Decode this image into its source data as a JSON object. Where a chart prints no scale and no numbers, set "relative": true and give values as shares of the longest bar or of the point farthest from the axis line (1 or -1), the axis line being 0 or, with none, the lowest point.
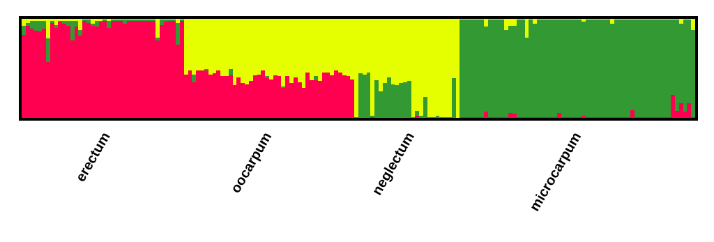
{
  "chart_data": {
    "type": "bar",
    "stacked": true,
    "relative": true,
    "categories": [
      null,
      null,
      null,
      null,
      null,
      null,
      null,
      null,
      null,
      null,
      null,
      null,
      null,
      null,
      null,
      null,
      null,
      "erectum",
      null,
      null,
      null,
      null,
      null,
      null,
      null,
      null,
      null,
      null,
      null,
      null,
      null,
      null,
      null,
      null,
      null,
      null,
      null,
      null,
      null,
      null,
      null,
      null,
      null,
      null,
      null,
      null,
      null,
      null,
      null,
      null,
      null,
      null,
      null,
      null,
      null,
      null,
      "oocarpum",
      null,
      null,
      null,
      null,
      null,
      null,
      null,
      null,
      null,
      null,
      null,
      null,
      null,
      null,
      null,
      null,
      null,
      null,
      null,
      null,
      null,
      null,
      null,
      null,
      null,
      null,
      null,
      null,
      null,
      null,
      null,
      null,
      null,
      null,
      "neglectum",
      null,
      null,
      null,
      null,
      null,
      null,
      null,
      null,
      null,
      null,
      null,
      null,
      null,
      null,
      null,
      null,
      null,
      null,
      null,
      null,
      null,
      null,
      null,
      null,
      null,
      null,
      null,
      null,
      null,
      null,
      null,
      null,
      null,
      null,
      null,
      null,
      null,
      null,
      null,
      "microcarpum",
      null,
      null,
      null,
      null,
      null,
      null,
      null,
      null,
      null,
      null,
      null,
      null,
      null,
      null,
      null,
      null,
      null,
      null,
      null,
      null,
      null,
      null,
      null,
      null,
      null,
      null,
      null,
      null,
      null,
      null,
      null,
      null,
      null,
      null
    ],
    "series": [
      {
        "color": "#ff0050",
        "values": [
          0.84,
          0.93,
          0.9,
          0.88,
          0.87,
          0.9,
          0.56,
          0.96,
          0.91,
          0.97,
          0.95,
          0.93,
          0.78,
          0.92,
          0.83,
          0.98,
          0.96,
          0.93,
          0.92,
          0.97,
          0.98,
          0.91,
          0.98,
          0.98,
          0.98,
          0.95,
          0.98,
          0.98,
          0.98,
          0.98,
          0.98,
          0.98,
          0.98,
          0.78,
          0.94,
          0.97,
          0.98,
          0.98,
          0.74,
          0.98,
          0.44,
          0.48,
          0.36,
          0.48,
          0.48,
          0.48,
          0.44,
          0.45,
          0.48,
          0.42,
          0.42,
          0.43,
          0.33,
          0.41,
          0.35,
          0.34,
          0.37,
          0.43,
          0.44,
          0.48,
          0.4,
          0.39,
          0.43,
          0.42,
          0.3,
          0.42,
          0.35,
          0.41,
          0.36,
          0.3,
          0.46,
          0.38,
          0.38,
          0.37,
          0.46,
          0.46,
          0.43,
          0.48,
          0.46,
          0.43,
          0.42,
          0.39,
          0,
          0,
          0,
          0,
          0.01,
          0,
          0,
          0,
          0,
          0,
          0,
          0,
          0,
          0,
          0,
          0.02,
          0,
          0,
          0,
          0,
          0,
          0,
          0,
          0,
          0,
          0,
          0.01,
          0.01,
          0.01,
          0.01,
          0.01,
          0.01,
          0.06,
          0.01,
          0.01,
          0.01,
          0.01,
          0.01,
          0.05,
          0.04,
          0.01,
          0.01,
          0.01,
          0.01,
          0.01,
          0.01,
          0.01,
          0.01,
          0.01,
          0.01,
          0.05,
          0.01,
          0.01,
          0.01,
          0.01,
          0.01,
          0.02,
          0.01,
          0.01,
          0.01,
          0.01,
          0.01,
          0.01,
          0.01,
          0.01,
          0.01,
          0.01,
          0.01,
          0.08,
          0.01,
          0.01,
          0.01,
          0.01,
          0.01,
          0.01,
          0.01,
          0.01,
          0.01,
          0.23,
          0.07,
          0.15,
          0.06,
          0.15,
          0.01
        ]
      },
      {
        "color": "#339933",
        "values": [
          0.09,
          0.03,
          0.08,
          0.1,
          0.11,
          0.08,
          0.24,
          0.02,
          0.03,
          0.01,
          0.03,
          0.05,
          0.2,
          0.06,
          0.06,
          0.01,
          0.03,
          0.02,
          0.06,
          0.01,
          0.01,
          0.07,
          0.01,
          0.01,
          0.01,
          0.04,
          0.01,
          0.01,
          0.01,
          0.01,
          0.01,
          0.01,
          0.01,
          0.03,
          0.05,
          0.02,
          0.01,
          0.01,
          0.22,
          0.01,
          0,
          0,
          0.08,
          0,
          0,
          0.01,
          0,
          0,
          0,
          0,
          0,
          0.06,
          0,
          0,
          0,
          0,
          0,
          0,
          0,
          0,
          0.02,
          0,
          0,
          0,
          0.02,
          0,
          0,
          0,
          0,
          0,
          0,
          0,
          0.04,
          0,
          0,
          0,
          0,
          0,
          0,
          0,
          0,
          0,
          0.01,
          0.45,
          0.44,
          0.46,
          0.01,
          0.38,
          0.27,
          0.35,
          0.41,
          0.34,
          0.33,
          0.35,
          0.36,
          0.37,
          0.01,
          0.05,
          0.02,
          0.21,
          0.01,
          0.01,
          0.02,
          0.01,
          0.01,
          0.01,
          0.4,
          0,
          0.98,
          0.98,
          0.98,
          0.98,
          0.98,
          0.98,
          0.86,
          0.98,
          0.98,
          0.98,
          0.98,
          0.88,
          0.88,
          0.89,
          0.98,
          0.98,
          0.8,
          0.98,
          0.94,
          0.98,
          0.98,
          0.98,
          0.98,
          0.98,
          0.94,
          0.98,
          0.98,
          0.98,
          0.98,
          0.98,
          0.95,
          0.98,
          0.98,
          0.98,
          0.98,
          0.98,
          0.98,
          0.94,
          0.98,
          0.98,
          0.98,
          0.98,
          0.91,
          0.98,
          0.98,
          0.98,
          0.98,
          0.98,
          0.98,
          0.98,
          0.98,
          0.98,
          0.76,
          0.92,
          0.8,
          0.93,
          0.84,
          0.88
        ]
      },
      {
        "color": "#e6ff00",
        "values": [
          0.07,
          0.04,
          0.02,
          0.02,
          0.02,
          0.02,
          0.2,
          0.02,
          0.06,
          0.02,
          0.02,
          0.02,
          0.02,
          0.02,
          0.11,
          0.01,
          0.01,
          0.05,
          0.02,
          0.02,
          0.01,
          0.02,
          0.01,
          0.01,
          0.01,
          0.01,
          0.01,
          0.01,
          0.01,
          0.01,
          0.01,
          0.01,
          0.01,
          0.19,
          0.01,
          0.01,
          0.01,
          0.01,
          0.04,
          0.01,
          0.56,
          0.52,
          0.56,
          0.52,
          0.52,
          0.51,
          0.56,
          0.55,
          0.52,
          0.58,
          0.58,
          0.51,
          0.67,
          0.59,
          0.65,
          0.66,
          0.63,
          0.57,
          0.56,
          0.52,
          0.58,
          0.61,
          0.57,
          0.58,
          0.68,
          0.58,
          0.65,
          0.59,
          0.64,
          0.7,
          0.54,
          0.62,
          0.58,
          0.63,
          0.54,
          0.54,
          0.57,
          0.52,
          0.54,
          0.57,
          0.58,
          0.61,
          0.99,
          0.55,
          0.56,
          0.54,
          0.98,
          0.62,
          0.73,
          0.65,
          0.59,
          0.66,
          0.67,
          0.65,
          0.64,
          0.63,
          0.99,
          0.93,
          0.98,
          0.79,
          0.99,
          0.99,
          0.98,
          0.99,
          0.99,
          0.99,
          0.6,
          1,
          0.01,
          0.01,
          0.01,
          0.01,
          0.01,
          0.01,
          0.08,
          0.01,
          0.01,
          0.01,
          0.01,
          0.11,
          0.07,
          0.07,
          0.01,
          0.01,
          0.19,
          0.01,
          0.05,
          0.01,
          0.01,
          0.01,
          0.01,
          0.01,
          0.01,
          0.01,
          0.01,
          0.01,
          0.01,
          0.01,
          0.03,
          0.01,
          0.01,
          0.01,
          0.01,
          0.01,
          0.01,
          0.05,
          0.01,
          0.01,
          0.01,
          0.01,
          0.01,
          0.01,
          0.01,
          0.01,
          0.01,
          0.01,
          0.01,
          0.01,
          0.01,
          0.01,
          0.01,
          0.01,
          0.05,
          0.01,
          0.01,
          0.11
        ]
      }
    ]
  }
}
